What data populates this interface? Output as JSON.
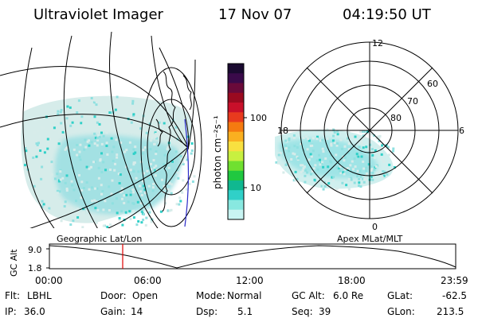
{
  "header": {
    "instrument": "Ultraviolet Imager",
    "date": "17 Nov 07",
    "time": "04:19:50 UT"
  },
  "colorbar": {
    "unit_label": "photon cm⁻²s⁻¹",
    "ticks": [
      "100",
      "10"
    ],
    "colors": [
      "#1a0a30",
      "#3a0a4a",
      "#6a0a3a",
      "#9a0a20",
      "#c8102a",
      "#e83a1e",
      "#f57a10",
      "#fab020",
      "#f8e040",
      "#c8f040",
      "#70e030",
      "#20c840",
      "#10b890",
      "#30d0c8",
      "#88e8e0",
      "#c8f4f2"
    ]
  },
  "map_left": {
    "name": "Geographic Lat/Lon"
  },
  "map_right": {
    "name": "Apex MLat/MLT",
    "lat_labels": [
      "60",
      "70",
      "80"
    ],
    "mlt_labels": [
      "12",
      "18",
      "6",
      "0"
    ]
  },
  "altitude_plot": {
    "ylabel": "GC Alt",
    "yticks": [
      "9.0",
      "1.8"
    ],
    "xticks": [
      "00:00",
      "06:00",
      "12:00",
      "18:00",
      "23:59"
    ],
    "current_time_hours": 4.33
  },
  "status": {
    "filter": {
      "label": "Flt:",
      "value": "LBHL"
    },
    "ip": {
      "label": "IP:",
      "value": "36.0"
    },
    "door": {
      "label": "Door:",
      "value": "Open"
    },
    "gain": {
      "label": "Gain:",
      "value": "14"
    },
    "mode": {
      "label": "Mode:",
      "value": "Normal"
    },
    "dsp": {
      "label": "Dsp:",
      "value": "5.1"
    },
    "gc_alt": {
      "label": "GC Alt:",
      "value": "6.0 Re"
    },
    "seq": {
      "label": "Seq:",
      "value": "39"
    },
    "glat": {
      "label": "GLat:",
      "value": "-62.5"
    },
    "glon": {
      "label": "GLon:",
      "value": "213.5"
    }
  }
}
